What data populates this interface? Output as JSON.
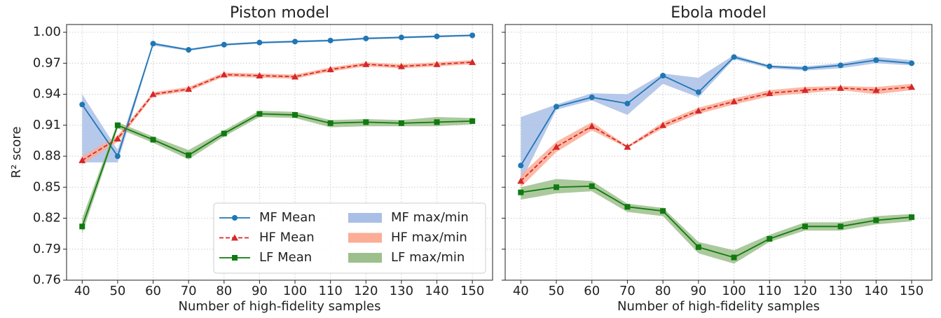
{
  "chart_data": [
    {
      "type": "line",
      "title": "Piston model",
      "xlabel": "Number of high-fidelity samples",
      "ylabel": "R² score",
      "x": [
        40,
        50,
        60,
        70,
        80,
        90,
        100,
        110,
        120,
        130,
        140,
        150
      ],
      "xlim": [
        35.6,
        155.7
      ],
      "xticks": [
        40,
        50,
        60,
        70,
        80,
        90,
        100,
        110,
        120,
        130,
        140,
        150
      ],
      "ylim": [
        0.76,
        1.0075
      ],
      "yticks": [
        0.76,
        0.79,
        0.82,
        0.85,
        0.88,
        0.91,
        0.94,
        0.97,
        {
          "value": 1.0,
          "label": "1.00"
        }
      ],
      "show_ytick_labels": true,
      "grid": true,
      "legend": "lower right",
      "series": [
        {
          "name": "MF Mean",
          "band_name": "MF max/min",
          "color": "#1f77b4",
          "band_color": "#aabfe6",
          "marker": "circle",
          "dashed": false,
          "values": [
            0.93,
            0.88,
            0.989,
            0.983,
            0.988,
            0.99,
            0.991,
            0.992,
            0.994,
            0.995,
            0.996,
            0.997
          ],
          "min": [
            0.874,
            0.874,
            0.987,
            0.982,
            0.987,
            0.989,
            0.99,
            0.991,
            0.993,
            0.994,
            0.995,
            0.996
          ],
          "max": [
            0.94,
            0.886,
            0.99,
            0.984,
            0.989,
            0.991,
            0.992,
            0.993,
            0.995,
            0.996,
            0.997,
            0.998
          ]
        },
        {
          "name": "HF Mean",
          "band_name": "HF max/min",
          "color": "#d62728",
          "band_color": "#fbad95",
          "marker": "triangle",
          "dashed": true,
          "values": [
            0.876,
            0.897,
            0.94,
            0.945,
            0.959,
            0.958,
            0.957,
            0.964,
            0.969,
            0.967,
            0.969,
            0.971
          ],
          "min": [
            0.872,
            0.894,
            0.938,
            0.943,
            0.957,
            0.956,
            0.955,
            0.962,
            0.967,
            0.965,
            0.967,
            0.969
          ],
          "max": [
            0.88,
            0.9,
            0.942,
            0.947,
            0.961,
            0.96,
            0.959,
            0.966,
            0.971,
            0.969,
            0.971,
            0.973
          ]
        },
        {
          "name": "LF Mean",
          "band_name": "LF max/min",
          "color": "#107a10",
          "band_color": "#9dbf8c",
          "marker": "square",
          "dashed": false,
          "values": [
            0.812,
            0.91,
            0.896,
            0.881,
            0.902,
            0.921,
            0.92,
            0.912,
            0.913,
            0.912,
            0.913,
            0.914
          ],
          "min": [
            0.805,
            0.907,
            0.893,
            0.877,
            0.899,
            0.918,
            0.917,
            0.908,
            0.909,
            0.909,
            0.909,
            0.911
          ],
          "max": [
            0.82,
            0.913,
            0.899,
            0.886,
            0.905,
            0.924,
            0.923,
            0.915,
            0.916,
            0.915,
            0.918,
            0.917
          ]
        }
      ]
    },
    {
      "type": "line",
      "title": "Ebola model",
      "xlabel": "Number of high-fidelity samples",
      "x": [
        40,
        50,
        60,
        70,
        80,
        90,
        100,
        110,
        120,
        130,
        140,
        150
      ],
      "xlim": [
        35.6,
        155.7
      ],
      "xticks": [
        40,
        50,
        60,
        70,
        80,
        90,
        100,
        110,
        120,
        130,
        140,
        150
      ],
      "ylim": [
        0.76,
        1.0075
      ],
      "yticks": [
        0.76,
        0.79,
        0.82,
        0.85,
        0.88,
        0.91,
        0.94,
        0.97,
        1.0
      ],
      "show_ytick_labels": false,
      "grid": true,
      "series": [
        {
          "color": "#1f77b4",
          "band_color": "#aabfe6",
          "marker": "circle",
          "dashed": false,
          "values": [
            0.871,
            0.928,
            0.937,
            0.931,
            0.958,
            0.942,
            0.976,
            0.967,
            0.965,
            0.968,
            0.973,
            0.97
          ],
          "min": [
            0.855,
            0.925,
            0.934,
            0.92,
            0.95,
            0.937,
            0.974,
            0.965,
            0.963,
            0.965,
            0.97,
            0.968
          ],
          "max": [
            0.918,
            0.93,
            0.941,
            0.94,
            0.96,
            0.956,
            0.978,
            0.968,
            0.967,
            0.97,
            0.976,
            0.973
          ]
        },
        {
          "color": "#d62728",
          "band_color": "#fbad95",
          "marker": "triangle",
          "dashed": true,
          "values": [
            0.856,
            0.889,
            0.909,
            0.889,
            0.91,
            0.924,
            0.933,
            0.941,
            0.944,
            0.946,
            0.944,
            0.947
          ],
          "min": [
            0.85,
            0.884,
            0.905,
            0.888,
            0.907,
            0.921,
            0.93,
            0.938,
            0.941,
            0.944,
            0.94,
            0.944
          ],
          "max": [
            0.862,
            0.894,
            0.913,
            0.89,
            0.913,
            0.927,
            0.936,
            0.944,
            0.947,
            0.948,
            0.947,
            0.95
          ]
        },
        {
          "color": "#107a10",
          "band_color": "#9dbf8c",
          "marker": "square",
          "dashed": false,
          "values": [
            0.845,
            0.85,
            0.851,
            0.831,
            0.827,
            0.792,
            0.782,
            0.8,
            0.812,
            0.812,
            0.818,
            0.821
          ],
          "min": [
            0.838,
            0.844,
            0.846,
            0.826,
            0.822,
            0.786,
            0.776,
            0.797,
            0.808,
            0.808,
            0.814,
            0.817
          ],
          "max": [
            0.85,
            0.858,
            0.856,
            0.834,
            0.83,
            0.797,
            0.789,
            0.804,
            0.816,
            0.816,
            0.822,
            0.824
          ]
        }
      ]
    }
  ]
}
